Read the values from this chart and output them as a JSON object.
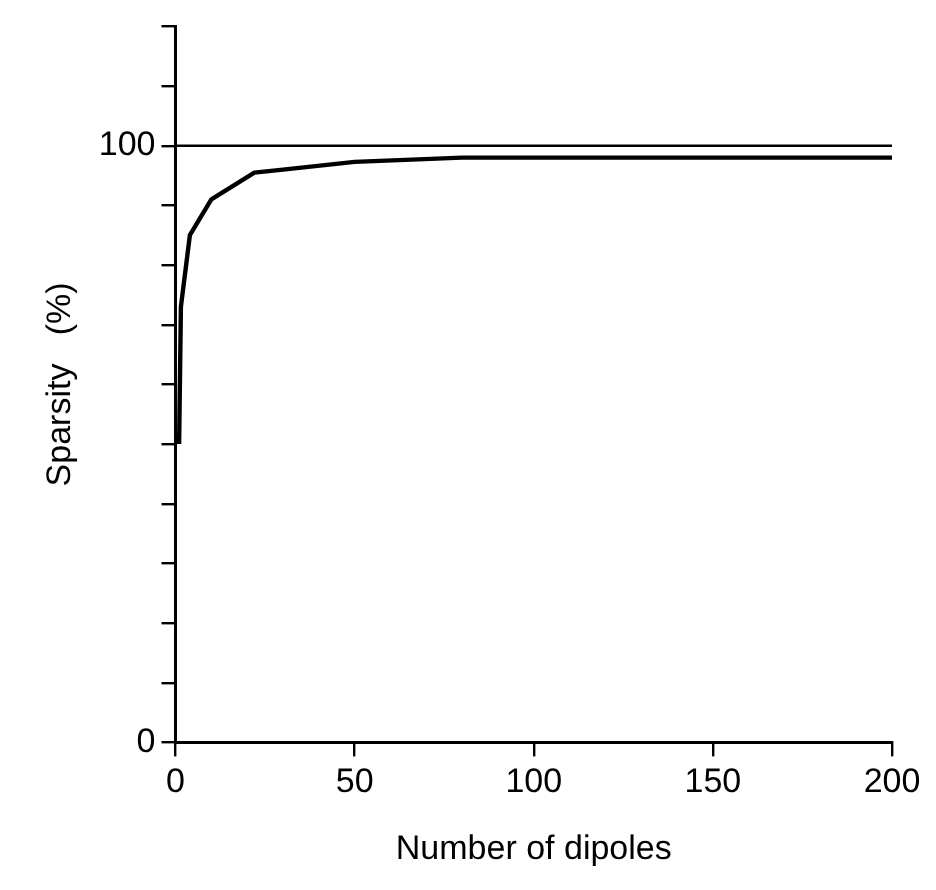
{
  "chart_data": {
    "type": "line",
    "xlabel": "Number of dipoles",
    "ylabel": "Sparsity   (%)",
    "x": [
      1,
      1.5,
      4,
      10,
      22,
      30,
      50,
      80,
      120,
      200
    ],
    "series": [
      {
        "color": "#000000",
        "values": [
          50,
          73,
          85,
          91,
          95.5,
          96,
          97.3,
          98,
          98,
          98
        ]
      }
    ],
    "xlim": [
      0,
      200
    ],
    "xticks": [
      0,
      50,
      100,
      150,
      200
    ],
    "ylim": [
      0,
      120
    ],
    "yticks": [
      0,
      {
        "value": 10,
        "label": null
      },
      {
        "value": 20,
        "label": null
      },
      {
        "value": 30,
        "label": null
      },
      {
        "value": 40,
        "label": null
      },
      {
        "value": 50,
        "label": null
      },
      {
        "value": 60,
        "label": null
      },
      {
        "value": 70,
        "label": null
      },
      {
        "value": 80,
        "label": null
      },
      {
        "value": 90,
        "label": null
      },
      100,
      {
        "value": 110,
        "label": null
      },
      {
        "value": 120,
        "label": null
      }
    ],
    "ref_lines": [
      {
        "axis": "y",
        "value": 100,
        "color": "#000000"
      }
    ],
    "marker": "none",
    "line_style": "solid",
    "legend": false,
    "grid": false
  }
}
